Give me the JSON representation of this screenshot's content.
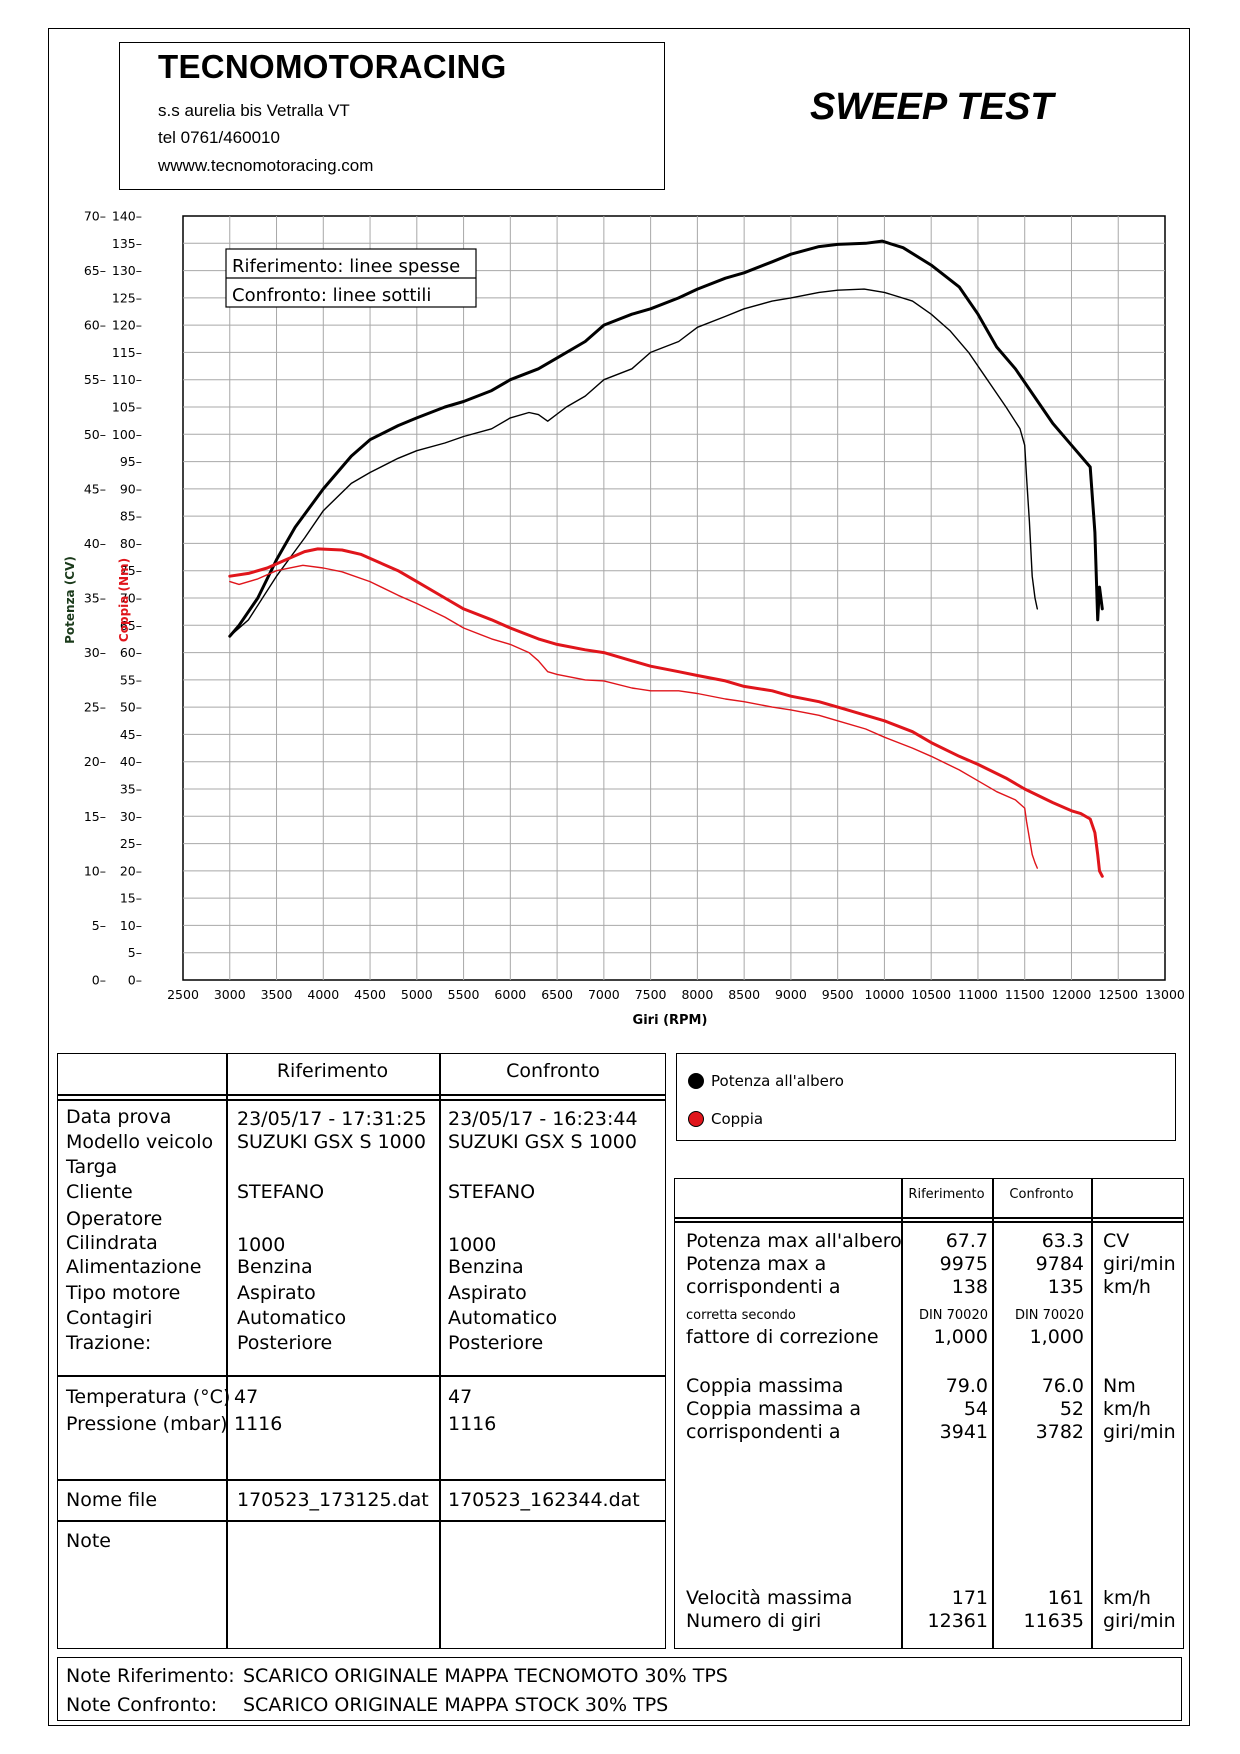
{
  "header": {
    "company": "TECNOMOTORACING",
    "address": "s.s aurelia bis  Vetralla  VT",
    "tel": "tel 0761/460010",
    "web": "wwww.tecnomotoracing.com",
    "test_title": "SWEEP TEST"
  },
  "chart_data": {
    "type": "line",
    "xlabel": "Giri (RPM)",
    "ylabel_power": "Potenza (CV)",
    "ylabel_torque": "Coppia (Nm)",
    "xlim": [
      2500,
      13000
    ],
    "x_ticks": [
      2500,
      3000,
      3500,
      4000,
      4500,
      5000,
      5500,
      6000,
      6500,
      7000,
      7500,
      8000,
      8500,
      9000,
      9500,
      10000,
      10500,
      11000,
      11500,
      12000,
      12500,
      13000
    ],
    "ylim_power": [
      0,
      70
    ],
    "ylim_torque": [
      0,
      140
    ],
    "power_ticks": [
      0,
      5,
      10,
      15,
      20,
      25,
      30,
      35,
      40,
      45,
      50,
      55,
      60,
      65,
      70
    ],
    "torque_ticks": [
      0,
      5,
      10,
      15,
      20,
      25,
      30,
      35,
      40,
      45,
      50,
      55,
      60,
      65,
      70,
      75,
      80,
      85,
      90,
      95,
      100,
      105,
      110,
      115,
      120,
      125,
      130,
      135,
      140
    ],
    "grid": true,
    "legend_box": [
      "Riferimento: linee spesse",
      "Confronto: linee sottili"
    ],
    "colors": {
      "power": "#000000",
      "torque": "#e0151b"
    },
    "series": [
      {
        "name": "Riferimento",
        "quantity": "power",
        "style": "thick",
        "x": [
          3000,
          3100,
          3300,
          3500,
          3700,
          4000,
          4300,
          4500,
          4800,
          5000,
          5300,
          5500,
          5800,
          6000,
          6300,
          6500,
          6800,
          7000,
          7300,
          7500,
          7800,
          8000,
          8300,
          8500,
          8800,
          9000,
          9300,
          9500,
          9800,
          9975,
          10200,
          10500,
          10800,
          11000,
          11200,
          11400,
          11600,
          11800,
          12000,
          12200,
          12250,
          12280,
          12300,
          12330
        ],
        "y": [
          31.5,
          32.5,
          35,
          38.5,
          41.5,
          45,
          48,
          49.5,
          50.8,
          51.5,
          52.5,
          53,
          54,
          55,
          56,
          57,
          58.5,
          60,
          61,
          61.5,
          62.5,
          63.3,
          64.3,
          64.8,
          65.8,
          66.5,
          67.2,
          67.4,
          67.5,
          67.7,
          67.1,
          65.5,
          63.5,
          61,
          58,
          56,
          53.5,
          51,
          49,
          47,
          41,
          33,
          36,
          34
        ]
      },
      {
        "name": "Confronto",
        "quantity": "power",
        "style": "thin",
        "x": [
          3000,
          3200,
          3500,
          3800,
          4000,
          4300,
          4500,
          4800,
          5000,
          5300,
          5500,
          5800,
          6000,
          6200,
          6300,
          6400,
          6600,
          6800,
          7000,
          7300,
          7500,
          7800,
          8000,
          8300,
          8500,
          8800,
          9000,
          9300,
          9500,
          9784,
          10000,
          10300,
          10500,
          10700,
          10900,
          11100,
          11300,
          11450,
          11500,
          11520,
          11550,
          11580,
          11610,
          11635
        ],
        "y": [
          31.5,
          33,
          37,
          40.5,
          43,
          45.5,
          46.5,
          47.8,
          48.5,
          49.2,
          49.8,
          50.5,
          51.5,
          52,
          51.8,
          51.2,
          52.5,
          53.5,
          55,
          56,
          57.5,
          58.5,
          59.8,
          60.8,
          61.5,
          62.2,
          62.5,
          63,
          63.2,
          63.3,
          63,
          62.2,
          61,
          59.5,
          57.5,
          55,
          52.5,
          50.5,
          49,
          46,
          42,
          37,
          35,
          34
        ]
      },
      {
        "name": "Riferimento",
        "quantity": "torque",
        "style": "thick",
        "x": [
          3000,
          3200,
          3400,
          3600,
          3800,
          3941,
          4200,
          4400,
          4600,
          4800,
          5000,
          5300,
          5500,
          5800,
          6000,
          6300,
          6500,
          6800,
          7000,
          7300,
          7500,
          7800,
          8000,
          8300,
          8500,
          8800,
          9000,
          9300,
          9500,
          9800,
          10000,
          10300,
          10500,
          10800,
          11000,
          11300,
          11500,
          11800,
          12000,
          12100,
          12200,
          12250,
          12280,
          12300,
          12330
        ],
        "y": [
          74,
          74.5,
          75.5,
          77,
          78.5,
          79,
          78.8,
          78,
          76.5,
          75,
          73,
          70,
          68,
          66,
          64.5,
          62.5,
          61.5,
          60.5,
          60,
          58.5,
          57.5,
          56.5,
          55.8,
          54.8,
          53.8,
          53,
          52,
          51,
          50,
          48.5,
          47.5,
          45.5,
          43.5,
          41,
          39.5,
          37,
          35,
          32.5,
          31,
          30.5,
          29.5,
          27,
          23,
          20,
          19
        ]
      },
      {
        "name": "Confronto",
        "quantity": "torque",
        "style": "thin",
        "x": [
          3000,
          3100,
          3300,
          3500,
          3782,
          4000,
          4200,
          4500,
          4800,
          5000,
          5300,
          5500,
          5800,
          6000,
          6200,
          6300,
          6400,
          6500,
          6800,
          7000,
          7300,
          7500,
          7800,
          8000,
          8300,
          8500,
          8800,
          9000,
          9300,
          9500,
          9800,
          10000,
          10300,
          10500,
          10800,
          11000,
          11200,
          11400,
          11500,
          11520,
          11550,
          11580,
          11610,
          11635
        ],
        "y": [
          73,
          72.5,
          73.5,
          75,
          76,
          75.5,
          74.8,
          73,
          70.5,
          69,
          66.5,
          64.5,
          62.5,
          61.5,
          60,
          58.5,
          56.5,
          56,
          55,
          54.8,
          53.5,
          53,
          53,
          52.5,
          51.5,
          51,
          50,
          49.5,
          48.5,
          47.5,
          46,
          44.5,
          42.5,
          41,
          38.5,
          36.5,
          34.5,
          33,
          31.5,
          29,
          26,
          23,
          21.5,
          20.5
        ]
      }
    ]
  },
  "info_table": {
    "col_ref": "Riferimento",
    "col_conf": "Confronto",
    "labels": [
      "Data prova",
      "Modello veicolo",
      "Targa",
      "Cliente",
      "Operatore",
      "Cilindrata",
      "Alimentazione",
      "Tipo motore",
      "Contagiri",
      "Trazione:"
    ],
    "ref": {
      "data": "23/05/17 - 17:31:25",
      "modello": "SUZUKI GSX S 1000",
      "cliente": "STEFANO",
      "cilindrata": "1000",
      "alimentazione": "Benzina",
      "tipo_motore": "Aspirato",
      "contagiri": "Automatico",
      "trazione": "Posteriore",
      "temperatura": "47",
      "pressione": "1116",
      "file": "170523_173125.dat"
    },
    "conf": {
      "data": "23/05/17 - 16:23:44",
      "modello": "SUZUKI GSX S 1000",
      "cliente": "STEFANO",
      "cilindrata": "1000",
      "alimentazione": "Benzina",
      "tipo_motore": "Aspirato",
      "contagiri": "Automatico",
      "trazione": "Posteriore",
      "temperatura": "47",
      "pressione": "1116",
      "file": "170523_162344.dat"
    },
    "label_temp": "Temperatura (°C)",
    "label_press": "Pressione (mbar)",
    "label_file": "Nome file",
    "label_note": "Note"
  },
  "legend": {
    "power": "Potenza all'albero",
    "torque": "Coppia"
  },
  "results": {
    "col_ref": "Riferimento",
    "col_conf": "Confronto",
    "rows": [
      {
        "label": "Potenza max all'albero",
        "ref": "67.7",
        "conf": "63.3",
        "unit": "CV"
      },
      {
        "label": "Potenza max a",
        "ref": "9975",
        "conf": "9784",
        "unit": "giri/min"
      },
      {
        "label": "corrispondenti a",
        "ref": "138",
        "conf": "135",
        "unit": "km/h"
      },
      {
        "label": "corretta secondo",
        "ref": "DIN 70020",
        "conf": "DIN 70020",
        "unit": ""
      },
      {
        "label": "fattore di correzione",
        "ref": "1,000",
        "conf": "1,000",
        "unit": ""
      },
      {
        "label": "Coppia massima",
        "ref": "79.0",
        "conf": "76.0",
        "unit": "Nm"
      },
      {
        "label": "Coppia massima a",
        "ref": "54",
        "conf": "52",
        "unit": "km/h"
      },
      {
        "label": "corrispondenti a",
        "ref": "3941",
        "conf": "3782",
        "unit": "giri/min"
      },
      {
        "label": "Velocità massima",
        "ref": "171",
        "conf": "161",
        "unit": "km/h"
      },
      {
        "label": "Numero di giri",
        "ref": "12361",
        "conf": "11635",
        "unit": "giri/min"
      }
    ]
  },
  "notes": {
    "ref_label": "Note Riferimento:",
    "ref_text": "SCARICO ORIGINALE MAPPA TECNOMOTO 30% TPS",
    "conf_label": "Note Confronto:",
    "conf_text": "SCARICO ORIGINALE MAPPA STOCK 30% TPS"
  }
}
